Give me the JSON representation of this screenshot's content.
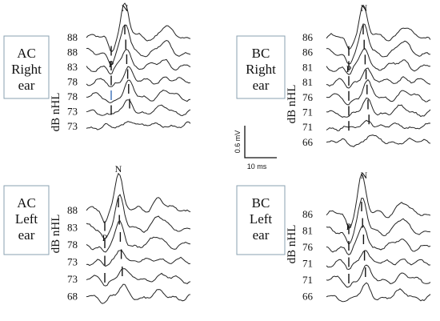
{
  "panels": [
    {
      "id": "ac-right",
      "label_lines": [
        "AC",
        "Right",
        "ear"
      ],
      "axis_unit": "dB nHL",
      "levels": [
        "88",
        "88",
        "83",
        "78",
        "78",
        "73",
        "73"
      ],
      "peak_labels": {
        "n": "N",
        "p": "P"
      }
    },
    {
      "id": "bc-right",
      "label_lines": [
        "BC",
        "Right",
        "ear"
      ],
      "axis_unit": "dB nHL",
      "levels": [
        "86",
        "86",
        "81",
        "81",
        "76",
        "71",
        "71",
        "66"
      ],
      "peak_labels": {
        "n": "N",
        "p": "P"
      }
    },
    {
      "id": "ac-left",
      "label_lines": [
        "AC",
        "Left",
        "ear"
      ],
      "axis_unit": "dB nHL",
      "levels": [
        "88",
        "83",
        "78",
        "73",
        "73",
        "68"
      ],
      "peak_labels": {
        "n": "N",
        "p": "P"
      }
    },
    {
      "id": "bc-left",
      "label_lines": [
        "BC",
        "Left",
        "ear"
      ],
      "axis_unit": "dB nHL",
      "levels": [
        "86",
        "81",
        "76",
        "71",
        "71",
        "66"
      ],
      "peak_labels": {
        "n": "N",
        "p": "P"
      }
    }
  ],
  "scale_bar": {
    "amplitude": "0.6 mV",
    "time": "10 ms"
  }
}
